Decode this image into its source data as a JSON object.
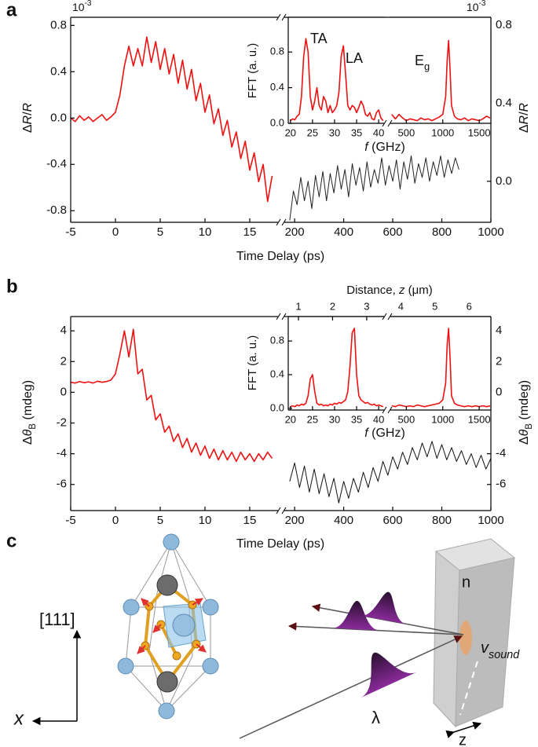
{
  "panel_labels": [
    "a",
    "b",
    "c"
  ],
  "chart_data": [
    {
      "type": "line",
      "xlabel": "Time Delay (ps)",
      "ylabel": [
        {
          "text": "Δ"
        },
        {
          "text": "R",
          "italic": true
        },
        {
          "text": "/"
        },
        {
          "text": "R",
          "italic": true
        }
      ],
      "exponent": [
        {
          "text": "10"
        },
        {
          "text": "-3",
          "sup": true
        }
      ],
      "xlim": [
        -5,
        18.25
      ],
      "xticks": [
        -5,
        0,
        5,
        10,
        15
      ],
      "ylim": [
        -0.9,
        0.87
      ],
      "yticks": [
        -0.8,
        -0.4,
        {
          "value": 0,
          "label": "0.0"
        },
        0.4,
        0.8
      ],
      "color": "#ee1111",
      "x": [
        -5,
        -4.5,
        -4,
        -3.5,
        -3,
        -2.5,
        -2,
        -1.5,
        -1,
        -0.5,
        0,
        0.5,
        1,
        1.5,
        2,
        2.5,
        3,
        3.5,
        4,
        4.5,
        5,
        5.5,
        6,
        6.5,
        7,
        7.5,
        8,
        8.5,
        9,
        9.5,
        10,
        10.5,
        11,
        11.5,
        12,
        12.5,
        13,
        13.5,
        14,
        14.5,
        15,
        15.5,
        16,
        16.5,
        17,
        17.5
      ],
      "values": [
        0.0,
        -0.03,
        0.02,
        -0.02,
        0.01,
        -0.03,
        0.0,
        0.03,
        -0.02,
        0.01,
        0.05,
        0.2,
        0.45,
        0.62,
        0.45,
        0.6,
        0.45,
        0.7,
        0.48,
        0.66,
        0.42,
        0.6,
        0.38,
        0.55,
        0.3,
        0.5,
        0.25,
        0.42,
        0.15,
        0.3,
        0.05,
        0.2,
        -0.05,
        0.08,
        -0.15,
        -0.02,
        -0.25,
        -0.12,
        -0.35,
        -0.2,
        -0.45,
        -0.3,
        -0.55,
        -0.4,
        -0.72,
        -0.5
      ]
    },
    {
      "type": "line",
      "ylabel": [
        {
          "text": "Δ"
        },
        {
          "text": "R",
          "italic": true
        },
        {
          "text": "/"
        },
        {
          "text": "R",
          "italic": true
        }
      ],
      "exponent": [
        {
          "text": "10"
        },
        {
          "text": "-3",
          "sup": true
        }
      ],
      "xlim": [
        158,
        1000
      ],
      "xticks": [
        200,
        400,
        600,
        800,
        1000
      ],
      "ylim": [
        -0.21,
        0.84
      ],
      "yticks": [
        {
          "value": 0,
          "label": "0.0"
        },
        0.4,
        0.8
      ],
      "color": "#222222",
      "x": [
        180,
        195,
        210,
        225,
        240,
        255,
        270,
        285,
        300,
        315,
        330,
        345,
        360,
        375,
        390,
        405,
        420,
        435,
        450,
        465,
        480,
        495,
        510,
        525,
        540,
        555,
        570,
        585,
        600,
        615,
        630,
        645,
        660,
        675,
        690,
        705,
        720,
        735,
        750,
        765,
        780,
        795,
        810,
        825,
        840,
        855,
        870
      ],
      "values": [
        -0.2,
        -0.05,
        -0.12,
        0.02,
        -0.1,
        0.0,
        -0.14,
        0.03,
        -0.08,
        0.05,
        -0.1,
        0.04,
        -0.06,
        0.08,
        -0.04,
        0.06,
        -0.08,
        0.09,
        -0.02,
        0.07,
        -0.05,
        0.1,
        -0.03,
        0.06,
        -0.01,
        0.12,
        -0.02,
        0.08,
        0.0,
        0.11,
        -0.04,
        0.1,
        0.01,
        0.13,
        -0.01,
        0.09,
        0.02,
        0.12,
        0.0,
        0.1,
        0.03,
        0.13,
        0.02,
        0.11,
        0.04,
        0.12,
        0.06
      ]
    },
    {
      "type": "line",
      "ylabel": "FFT (a. u.)",
      "xlabel": [
        {
          "text": "f",
          "italic": true
        },
        {
          "text": " (GHz)"
        }
      ],
      "annotations": [
        "TA",
        "LA"
      ],
      "xlim": [
        19.5,
        41.4
      ],
      "xticks": [
        20,
        25,
        30,
        35,
        40
      ],
      "ylim": [
        0,
        1.19
      ],
      "yticks": [
        {
          "value": 0,
          "label": "0.0"
        },
        0.4,
        0.8
      ],
      "color": "#ee1111",
      "x": [
        20,
        20.5,
        21,
        21.5,
        22,
        22.5,
        23,
        23.5,
        24,
        24.5,
        25,
        25.5,
        26,
        26.5,
        27,
        27.5,
        28,
        28.5,
        29,
        29.5,
        30,
        30.5,
        31,
        31.5,
        32,
        32.5,
        33,
        33.5,
        34,
        34.5,
        35,
        35.5,
        36,
        36.5,
        37,
        37.5,
        38,
        38.5,
        39,
        39.5,
        40,
        40.5,
        41
      ],
      "values": [
        0.03,
        0.05,
        0.04,
        0.08,
        0.1,
        0.3,
        0.75,
        0.95,
        0.8,
        0.3,
        0.15,
        0.25,
        0.4,
        0.2,
        0.15,
        0.3,
        0.25,
        0.12,
        0.2,
        0.12,
        0.15,
        0.2,
        0.35,
        0.75,
        0.87,
        0.55,
        0.2,
        0.15,
        0.2,
        0.18,
        0.12,
        0.18,
        0.25,
        0.2,
        0.1,
        0.08,
        0.12,
        0.05,
        0.04,
        0.12,
        0.15,
        0.06,
        0.03
      ]
    },
    {
      "type": "line",
      "annotations": [
        [
          {
            "text": "E"
          },
          {
            "text": "g",
            "sub": true
          }
        ]
      ],
      "xlim": [
        270,
        1660
      ],
      "xticks": [
        500,
        1000,
        1500
      ],
      "ylim": [
        0,
        1.19
      ],
      "color": "#ee1111",
      "x": [
        300,
        350,
        400,
        450,
        500,
        550,
        600,
        650,
        700,
        750,
        800,
        850,
        900,
        950,
        1000,
        1040,
        1060,
        1080,
        1100,
        1120,
        1160,
        1200,
        1250,
        1300,
        1350,
        1400,
        1450,
        1500,
        1550,
        1600,
        1650
      ],
      "values": [
        0.1,
        0.05,
        0.1,
        0.06,
        0.03,
        0.05,
        0.04,
        0.03,
        0.06,
        0.04,
        0.05,
        0.03,
        0.05,
        0.07,
        0.1,
        0.3,
        0.7,
        0.93,
        0.6,
        0.2,
        0.08,
        0.05,
        0.04,
        0.06,
        0.03,
        0.05,
        0.04,
        0.03,
        0.05,
        0.08,
        0.06
      ]
    },
    {
      "type": "line",
      "xlabel": "Time Delay (ps)",
      "ylabel": [
        {
          "text": "Δ"
        },
        {
          "text": "θ",
          "italic": true
        },
        {
          "text": "B",
          "sub": true
        },
        {
          "text": " (mdeg)"
        }
      ],
      "xlim": [
        -5,
        18.25
      ],
      "xticks": [
        -5,
        0,
        5,
        10,
        15
      ],
      "ylim": [
        -7.7,
        4.93
      ],
      "yticks": [
        -6,
        -4,
        -2,
        0,
        2,
        4
      ],
      "color": "#ee1111",
      "x": [
        -5,
        -4.5,
        -4,
        -3.5,
        -3,
        -2.5,
        -2,
        -1.5,
        -1,
        -0.5,
        0,
        0.5,
        1,
        1.5,
        2,
        2.5,
        3,
        3.5,
        4,
        4.5,
        5,
        5.5,
        6,
        6.5,
        7,
        7.5,
        8,
        8.5,
        9,
        9.5,
        10,
        10.5,
        11,
        11.5,
        12,
        12.5,
        13,
        13.5,
        14,
        14.5,
        15,
        15.5,
        16,
        16.5,
        17,
        17.5
      ],
      "values": [
        0.65,
        0.6,
        0.7,
        0.62,
        0.68,
        0.6,
        0.72,
        0.65,
        0.7,
        0.8,
        1.2,
        2.5,
        4.0,
        2.3,
        4.1,
        1.2,
        1.5,
        -0.5,
        -0.2,
        -1.8,
        -1.4,
        -2.6,
        -2.2,
        -3.2,
        -2.7,
        -3.6,
        -3.0,
        -3.9,
        -3.3,
        -4.1,
        -3.5,
        -4.3,
        -3.7,
        -4.4,
        -3.8,
        -4.4,
        -3.9,
        -4.5,
        -3.9,
        -4.4,
        -4.0,
        -4.5,
        -4.0,
        -4.4,
        -3.9,
        -4.3
      ]
    },
    {
      "type": "line",
      "ylabel": [
        {
          "text": "Δ"
        },
        {
          "text": "θ",
          "italic": true
        },
        {
          "text": "B",
          "sub": true
        },
        {
          "text": " (mdeg)"
        }
      ],
      "xlim": [
        158,
        1000
      ],
      "xticks": [
        200,
        400,
        600,
        800,
        1000
      ],
      "ylim": [
        -7.7,
        4.93
      ],
      "yticks": [
        -6,
        -4,
        0,
        2,
        4
      ],
      "color": "#111111",
      "x": [
        180,
        200,
        220,
        240,
        260,
        280,
        300,
        320,
        340,
        360,
        380,
        400,
        420,
        440,
        460,
        480,
        500,
        520,
        540,
        560,
        580,
        600,
        620,
        640,
        660,
        680,
        700,
        720,
        740,
        760,
        780,
        800,
        820,
        840,
        860,
        880,
        900,
        920,
        940,
        960,
        980,
        1000
      ],
      "values": [
        -5.8,
        -4.6,
        -6.2,
        -4.8,
        -6.5,
        -5.0,
        -6.6,
        -5.3,
        -6.8,
        -5.6,
        -7.2,
        -5.8,
        -6.9,
        -5.6,
        -6.5,
        -5.2,
        -6.2,
        -4.9,
        -5.8,
        -4.5,
        -5.4,
        -4.2,
        -5.0,
        -3.9,
        -4.7,
        -3.6,
        -4.4,
        -3.3,
        -4.2,
        -3.2,
        -4.3,
        -3.4,
        -4.4,
        -3.6,
        -4.5,
        -3.8,
        -4.7,
        -4.0,
        -4.9,
        -4.1,
        -5.0,
        -4.3
      ]
    },
    {
      "type": "line",
      "ylabel": "FFT (a. u.)",
      "xlabel": [
        {
          "text": "f",
          "italic": true
        },
        {
          "text": " (GHz)"
        }
      ],
      "x2label": [
        {
          "text": "Distance, "
        },
        {
          "text": "z",
          "italic": true
        },
        {
          "text": " (μm)"
        }
      ],
      "x2lim": [
        0.7,
        6.64
      ],
      "x2ticks": [
        1,
        2,
        3,
        4,
        5,
        6
      ],
      "xlim": [
        19.5,
        41.4
      ],
      "xticks": [
        20,
        25,
        30,
        35,
        40
      ],
      "ylim": [
        -0.02,
        1.09
      ],
      "yticks": [
        {
          "value": 0,
          "label": "0.0"
        },
        0.4,
        0.8
      ],
      "color": "#ee1111",
      "x": [
        20,
        20.5,
        21,
        21.5,
        22,
        22.5,
        23,
        23.5,
        24,
        24.5,
        25,
        25.5,
        26,
        26.5,
        27,
        27.5,
        28,
        28.5,
        29,
        29.5,
        30,
        30.5,
        31,
        31.5,
        32,
        32.5,
        33,
        33.5,
        34,
        34.5,
        35,
        35.5,
        36,
        36.5,
        37,
        37.5,
        38,
        38.5,
        39,
        39.5,
        40,
        40.5,
        41
      ],
      "values": [
        0.02,
        0.03,
        0.02,
        0.04,
        0.03,
        0.05,
        0.04,
        0.06,
        0.15,
        0.35,
        0.4,
        0.2,
        0.06,
        0.04,
        0.05,
        0.03,
        0.04,
        0.03,
        0.05,
        0.04,
        0.06,
        0.05,
        0.07,
        0.06,
        0.08,
        0.1,
        0.2,
        0.5,
        0.9,
        0.95,
        0.4,
        0.15,
        0.1,
        0.08,
        0.06,
        0.07,
        0.05,
        0.04,
        0.05,
        0.03,
        0.04,
        0.03,
        0.02
      ]
    },
    {
      "type": "line",
      "xlim": [
        270,
        1660
      ],
      "xticks": [
        500,
        1000,
        1500
      ],
      "ylim": [
        -0.02,
        1.09
      ],
      "color": "#ee1111",
      "x": [
        300,
        350,
        400,
        450,
        500,
        550,
        600,
        650,
        700,
        750,
        800,
        850,
        900,
        950,
        1000,
        1040,
        1060,
        1080,
        1100,
        1120,
        1160,
        1200,
        1250,
        1300,
        1350,
        1400,
        1450,
        1500,
        1550,
        1600,
        1650
      ],
      "values": [
        0.03,
        0.02,
        0.04,
        0.03,
        0.02,
        0.03,
        0.02,
        0.04,
        0.03,
        0.02,
        0.03,
        0.04,
        0.05,
        0.06,
        0.1,
        0.3,
        0.75,
        0.95,
        0.6,
        0.15,
        0.06,
        0.04,
        0.03,
        0.02,
        0.03,
        0.02,
        0.03,
        0.02,
        0.03,
        0.02,
        0.03
      ]
    }
  ],
  "diagram": {
    "direction": "[111]",
    "axis": "x",
    "index": "n",
    "velocity": [
      {
        "text": "v",
        "italic": true
      },
      {
        "text": "sound",
        "sub": true,
        "italic": true
      }
    ],
    "wavelength": "λ",
    "depth": "z"
  }
}
